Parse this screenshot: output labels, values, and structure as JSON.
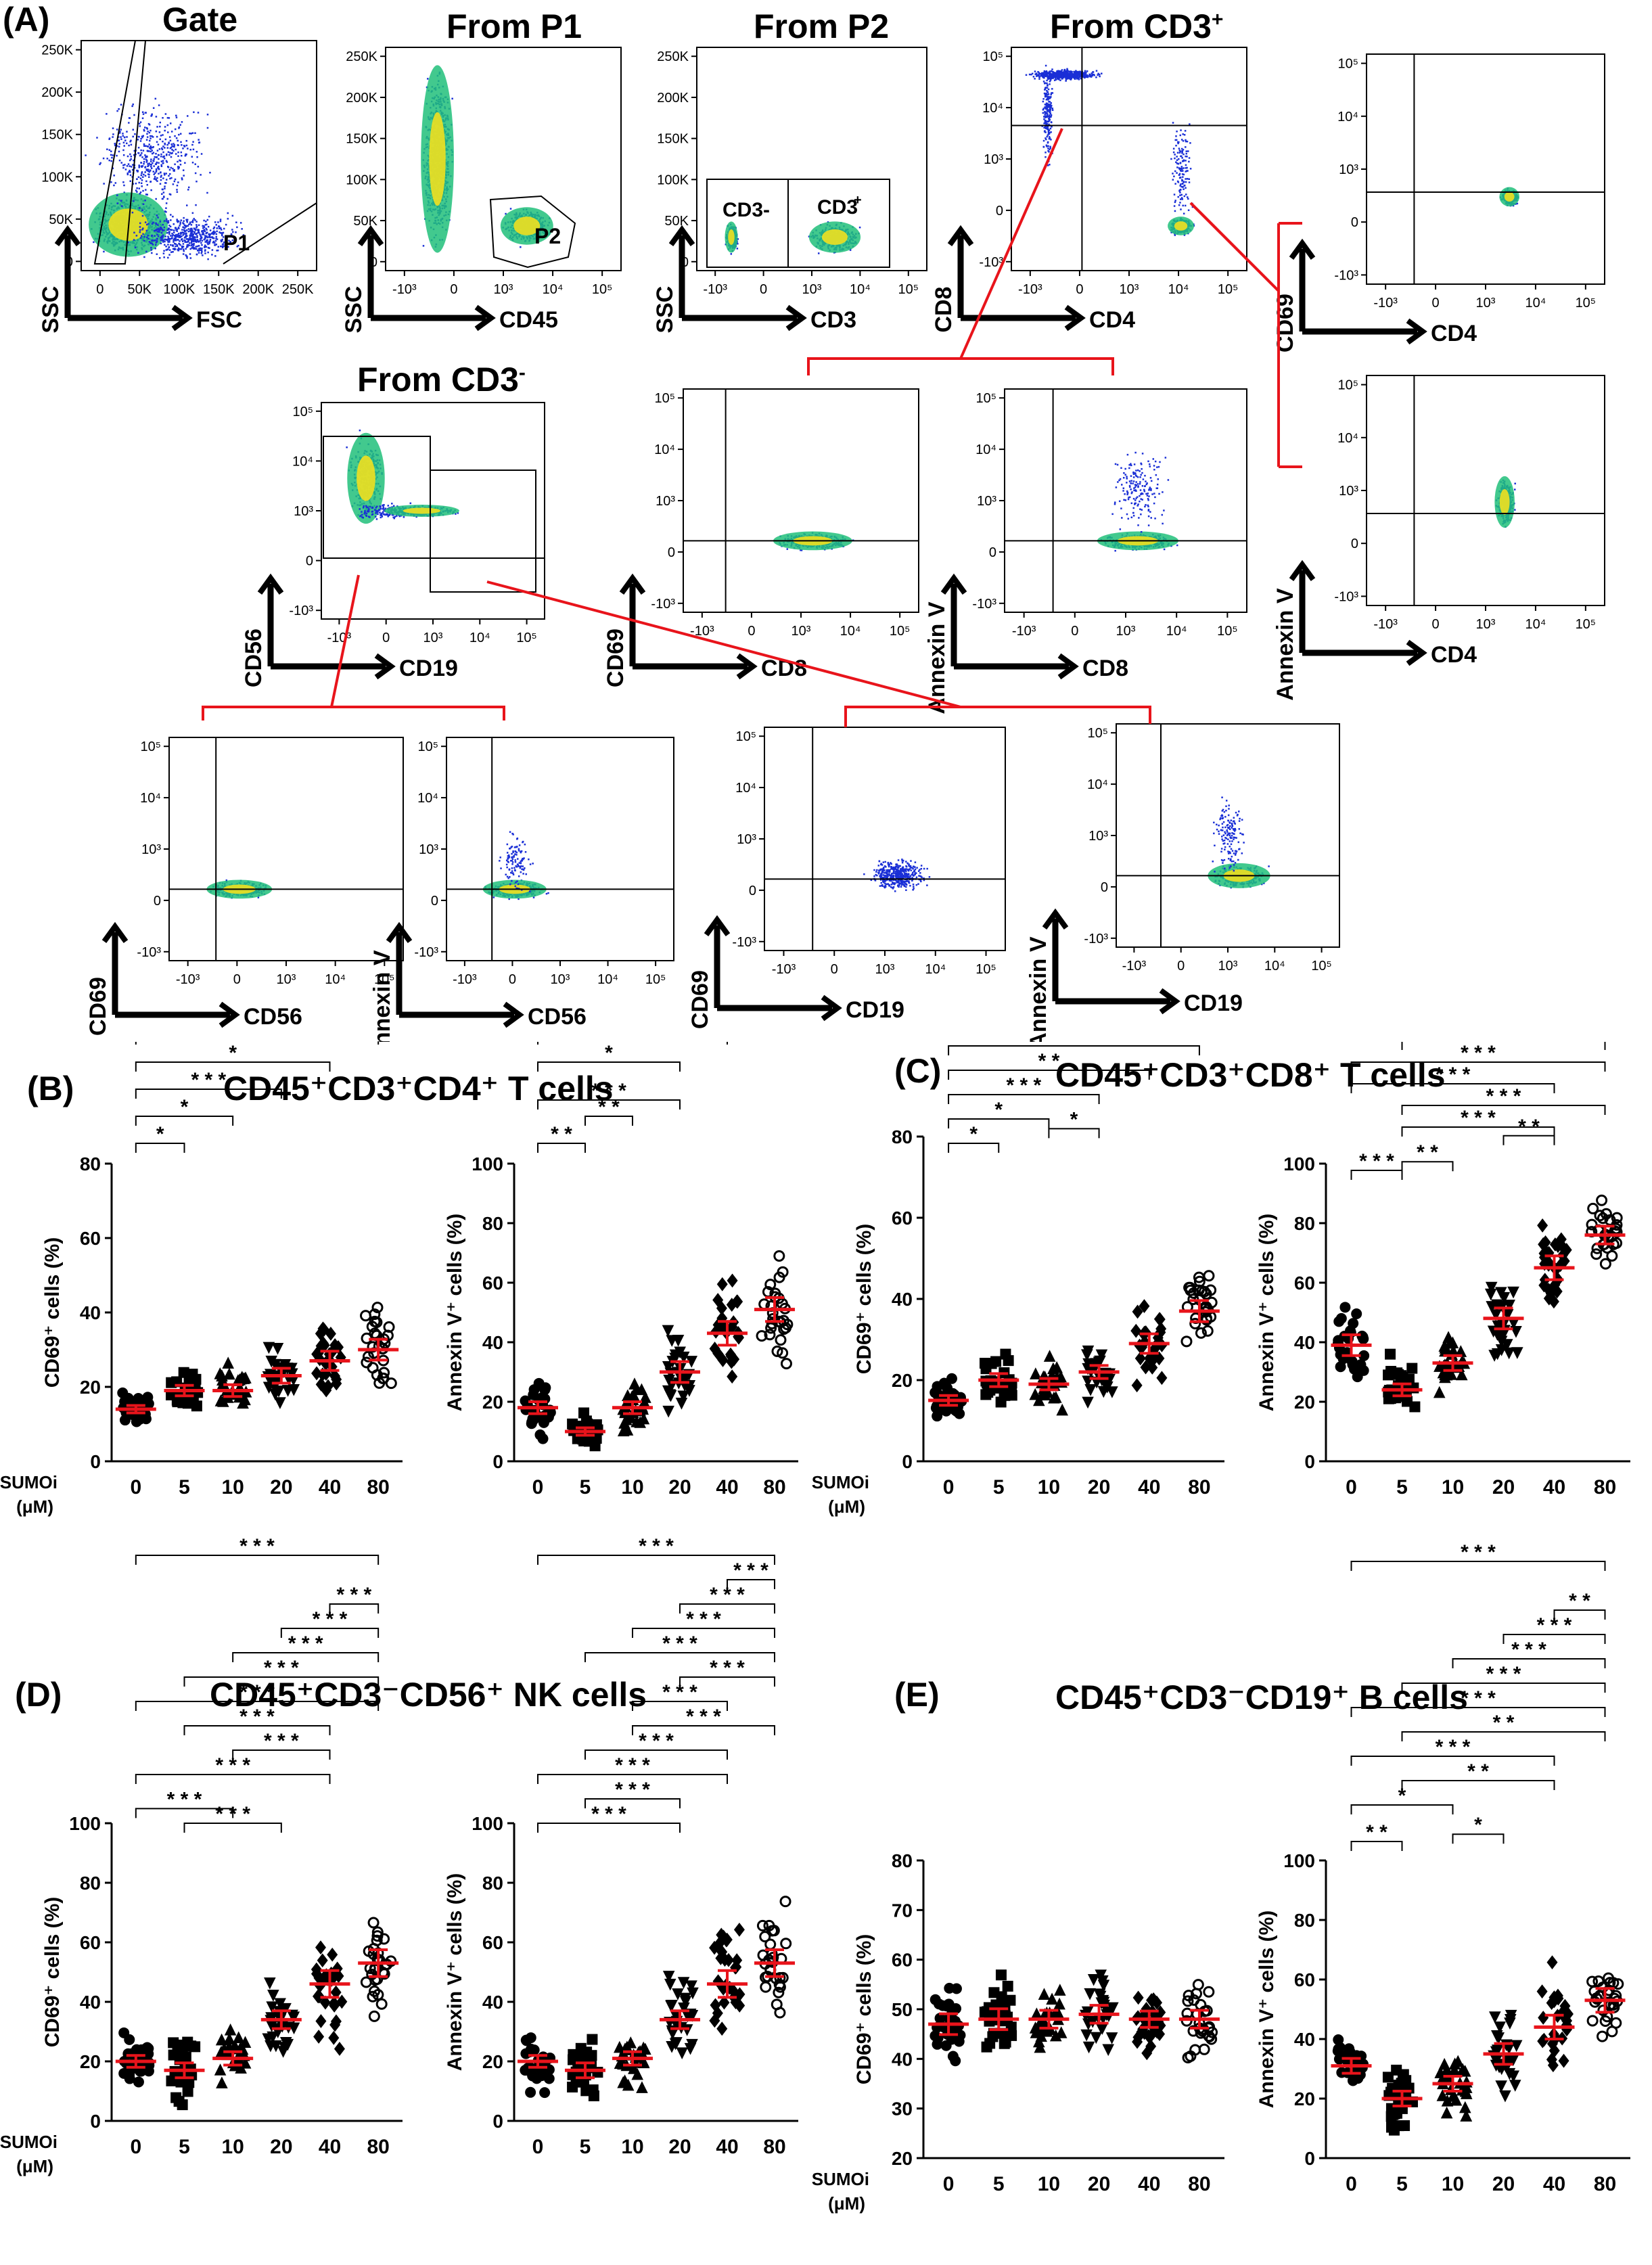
{
  "panel_labels": {
    "a": "(A)",
    "b": "(B)",
    "c": "(C)",
    "d": "(D)",
    "e": "(E)"
  },
  "flow": {
    "titles": {
      "gate": "Gate",
      "p1": "From P1",
      "p2": "From P2",
      "cd3p": "From CD3",
      "cd3m": "From CD3"
    },
    "title_sup": {
      "cd3p": "+",
      "cd3m": "-"
    },
    "gates": {
      "p1": "P1",
      "p2": "P2",
      "cd3m": "CD3-",
      "cd3p": "CD3",
      "cd3p_sup": "+"
    },
    "axis_labels": {
      "ssc": "SSC",
      "fsc": "FSC",
      "cd45": "CD45",
      "cd3": "CD3",
      "cd8": "CD8",
      "cd4": "CD4",
      "cd69": "CD69",
      "annexin": "Annexin V",
      "cd56": "CD56",
      "cd19": "CD19"
    },
    "ticks_lin": [
      "250K",
      "200K",
      "150K",
      "100K",
      "50K",
      "0"
    ],
    "ticks_fsc": [
      "0",
      "50K",
      "100K",
      "150K",
      "200K",
      "250K"
    ],
    "ticks_log": [
      "-10³",
      "0",
      "10³",
      "10⁴",
      "10⁵"
    ],
    "ticks_log_y": [
      "10⁵",
      "10⁴",
      "10³",
      "0",
      "-10³"
    ]
  },
  "common": {
    "sumoi": "SUMOi",
    "unit": "(μM)",
    "sig": "* * *",
    "sig2": "* *",
    "sig1": "*"
  },
  "chart_data": [
    {
      "type": "scatter",
      "panel": "B",
      "title": "CD45⁺CD3⁺CD4⁺ T cells",
      "ylabel": "CD69⁺ cells (%)",
      "categories": [
        "0",
        "5",
        "10",
        "20",
        "40",
        "80"
      ],
      "ylim": [
        0,
        80
      ],
      "yticks": [
        "0",
        "20",
        "40",
        "60",
        "80"
      ],
      "means": [
        14,
        19,
        19,
        23,
        27,
        30
      ]
    },
    {
      "type": "scatter",
      "panel": "B",
      "ylabel": "Annexin V⁺ cells (%)",
      "categories": [
        "0",
        "5",
        "10",
        "20",
        "40",
        "80"
      ],
      "ylim": [
        0,
        100
      ],
      "yticks": [
        "0",
        "20",
        "40",
        "60",
        "80",
        "100"
      ],
      "means": [
        18,
        10,
        18,
        30,
        43,
        51
      ]
    },
    {
      "type": "scatter",
      "panel": "C",
      "title": "CD45⁺CD3⁺CD8⁺ T cells",
      "ylabel": "CD69⁺ cells (%)",
      "categories": [
        "0",
        "5",
        "10",
        "20",
        "40",
        "80"
      ],
      "ylim": [
        0,
        80
      ],
      "yticks": [
        "0",
        "20",
        "40",
        "60",
        "80"
      ],
      "means": [
        15,
        20,
        19,
        22,
        29,
        37
      ]
    },
    {
      "type": "scatter",
      "panel": "C",
      "ylabel": "Annexin V⁺ cells (%)",
      "categories": [
        "0",
        "5",
        "10",
        "20",
        "40",
        "80"
      ],
      "ylim": [
        0,
        100
      ],
      "yticks": [
        "0",
        "20",
        "40",
        "60",
        "80",
        "100"
      ],
      "means": [
        39,
        24,
        33,
        48,
        65,
        76
      ]
    },
    {
      "type": "scatter",
      "panel": "D",
      "title": "CD45⁺CD3⁻CD56⁺ NK cells",
      "ylabel": "CD69⁺ cells (%)",
      "categories": [
        "0",
        "5",
        "10",
        "20",
        "40",
        "80"
      ],
      "ylim": [
        0,
        100
      ],
      "yticks": [
        "0",
        "20",
        "40",
        "60",
        "80",
        "100"
      ],
      "means": [
        20,
        17,
        21,
        34,
        46,
        53
      ]
    },
    {
      "type": "scatter",
      "panel": "D",
      "ylabel": "Annexin V⁺ cells (%)",
      "categories": [
        "0",
        "5",
        "10",
        "20",
        "40",
        "80"
      ],
      "ylim": [
        0,
        100
      ],
      "yticks": [
        "0",
        "20",
        "40",
        "60",
        "80",
        "100"
      ],
      "means": [
        20,
        17,
        21,
        34,
        46,
        53
      ]
    },
    {
      "type": "scatter",
      "panel": "E",
      "title": "CD45⁺CD3⁻CD19⁺ B cells",
      "ylabel": "CD69⁺ cells (%)",
      "categories": [
        "0",
        "5",
        "10",
        "20",
        "40",
        "80"
      ],
      "ylim": [
        20,
        80
      ],
      "yticks": [
        "20",
        "30",
        "40",
        "50",
        "60",
        "70",
        "80"
      ],
      "means": [
        47,
        48,
        48,
        49,
        48,
        48
      ]
    },
    {
      "type": "scatter",
      "panel": "E",
      "ylabel": "Annexin V⁺ cells (%)",
      "categories": [
        "0",
        "5",
        "10",
        "20",
        "40",
        "80"
      ],
      "ylim": [
        0,
        100
      ],
      "yticks": [
        "0",
        "20",
        "40",
        "60",
        "80",
        "100"
      ],
      "means": [
        31,
        20,
        25,
        35,
        44,
        53
      ]
    }
  ],
  "colors": {
    "mean": "#e8141b",
    "gate_line": "#e8141b",
    "dot": "#1a2fd6",
    "hot": "#f0e020"
  }
}
